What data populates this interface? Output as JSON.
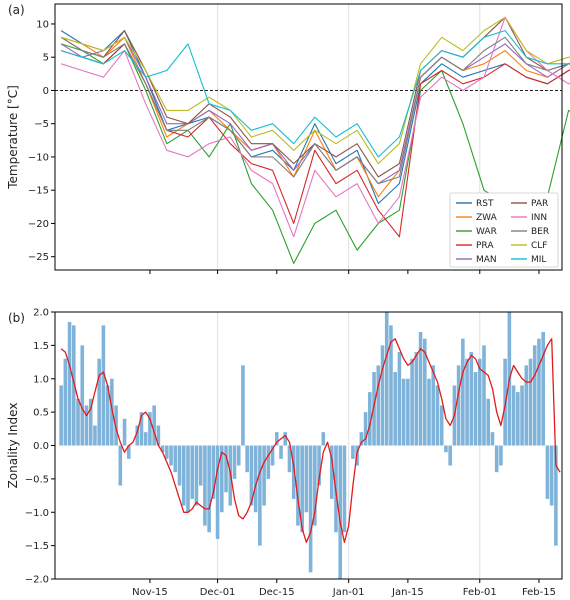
{
  "chart_data": [
    {
      "type": "line",
      "panel_label": "(a)",
      "ylabel": "Temperature [°C]",
      "ylim": [
        -27,
        13
      ],
      "yticks": [
        -25,
        -20,
        -15,
        -10,
        -5,
        0,
        5,
        10
      ],
      "ytick_labels": [
        "−25",
        "−20",
        "−15",
        "−10",
        "−5",
        "0",
        "5",
        "10"
      ],
      "x_dates": [
        "2015-10-25",
        "2015-10-30",
        "2015-11-04",
        "2015-11-09",
        "2015-11-14",
        "2015-11-19",
        "2015-11-24",
        "2015-11-29",
        "2015-12-04",
        "2015-12-09",
        "2015-12-14",
        "2015-12-19",
        "2015-12-24",
        "2015-12-29",
        "2016-01-03",
        "2016-01-08",
        "2016-01-13",
        "2016-01-18",
        "2016-01-23",
        "2016-01-28",
        "2016-02-02",
        "2016-02-07",
        "2016-02-12",
        "2016-02-17",
        "2016-02-22",
        "2016-02-27"
      ],
      "zero_line": "dashed",
      "legend": "bottom-right",
      "legend_columns": 2,
      "series": [
        {
          "name": "RST",
          "color": "#1f77b4",
          "values": [
            9,
            7,
            6,
            9,
            2,
            -6,
            -5,
            -4,
            -6,
            -10,
            -9,
            -12,
            -5,
            -11,
            -9,
            -17,
            -14,
            1,
            4,
            2,
            3,
            4,
            2,
            1,
            3,
            4
          ]
        },
        {
          "name": "ZWA",
          "color": "#ff7f0e",
          "values": [
            8,
            7,
            5,
            8,
            1,
            -7,
            -5,
            -3,
            -6,
            -9,
            -8,
            -13,
            -6,
            -12,
            -10,
            -16,
            -12,
            2,
            5,
            3,
            4,
            6,
            3,
            2,
            4,
            3
          ]
        },
        {
          "name": "WAR",
          "color": "#2ca02c",
          "values": [
            7,
            6,
            4,
            7,
            0,
            -8,
            -6,
            -10,
            -5,
            -14,
            -18,
            -26,
            -20,
            -18,
            -24,
            -20,
            -18,
            0,
            3,
            -5,
            -15,
            -17,
            -20,
            -16,
            -3,
            -5
          ]
        },
        {
          "name": "PRA",
          "color": "#d62728",
          "values": [
            6,
            5,
            4,
            7,
            1,
            -6,
            -7,
            -4,
            -8,
            -11,
            -12,
            -20,
            -9,
            -14,
            -12,
            -18,
            -22,
            1,
            3,
            1,
            2,
            4,
            2,
            1,
            3,
            4
          ]
        },
        {
          "name": "MAN",
          "color": "#9467bd",
          "values": [
            7,
            5,
            6,
            8,
            2,
            -5,
            -5,
            -3,
            -5,
            -9,
            -8,
            -12,
            -8,
            -12,
            -10,
            -14,
            -12,
            2,
            5,
            3,
            5,
            7,
            4,
            2,
            4,
            5
          ]
        },
        {
          "name": "PAR",
          "color": "#8c564b",
          "values": [
            8,
            6,
            5,
            9,
            3,
            -4,
            -5,
            -2,
            -4,
            -8,
            -8,
            -11,
            -8,
            -10,
            -8,
            -13,
            -11,
            3,
            6,
            5,
            8,
            11,
            5,
            3,
            4,
            5
          ]
        },
        {
          "name": "INN",
          "color": "#e377c2",
          "values": [
            4,
            3,
            2,
            6,
            -2,
            -9,
            -10,
            -8,
            -7,
            -12,
            -14,
            -22,
            -12,
            -16,
            -14,
            -20,
            -16,
            -1,
            2,
            0,
            2,
            11,
            6,
            3,
            1,
            2
          ]
        },
        {
          "name": "BER",
          "color": "#7f7f7f",
          "values": [
            8,
            6,
            5,
            7,
            1,
            -6,
            -6,
            -4,
            -6,
            -10,
            -10,
            -13,
            -8,
            -12,
            -10,
            -14,
            -13,
            2,
            5,
            3,
            6,
            8,
            4,
            3,
            4,
            4
          ]
        },
        {
          "name": "CLF",
          "color": "#bcbd22",
          "values": [
            8,
            7,
            6,
            8,
            3,
            -3,
            -3,
            -1,
            -3,
            -7,
            -6,
            -9,
            -6,
            -8,
            -6,
            -11,
            -8,
            4,
            8,
            6,
            9,
            11,
            6,
            4,
            5,
            5
          ]
        },
        {
          "name": "MIL",
          "color": "#17becf",
          "values": [
            6,
            5,
            4,
            6,
            2,
            3,
            7,
            -2,
            -3,
            -6,
            -5,
            -8,
            -4,
            -7,
            -5,
            -10,
            -7,
            3,
            6,
            5,
            8,
            9,
            5,
            4,
            4,
            5
          ]
        }
      ]
    },
    {
      "type": "bar",
      "panel_label": "(b)",
      "ylabel": "Zonality Index",
      "ylim": [
        -2.0,
        2.0
      ],
      "yticks": [
        -2.0,
        -1.5,
        -1.0,
        -0.5,
        0.0,
        0.5,
        1.0,
        1.5,
        2.0
      ],
      "ytick_labels": [
        "−2.0",
        "−1.5",
        "−1.0",
        "−0.5",
        "0.0",
        "0.5",
        "1.0",
        "1.5",
        "2.0"
      ],
      "xticks": [
        "2015-11-15",
        "2015-12-01",
        "2015-12-15",
        "2016-01-01",
        "2016-01-15",
        "2016-02-01",
        "2016-02-15"
      ],
      "xtick_labels": [
        "Nov-15",
        "Dec-01",
        "Dec-15",
        "Jan-01",
        "Jan-15",
        "Feb-01",
        "Feb-15"
      ],
      "x_start_date": "2015-10-25",
      "bar_color": "#7fb3d9",
      "smooth_color": "#e31a1c",
      "values": [
        0.9,
        1.3,
        1.85,
        1.8,
        0.7,
        1.5,
        0.6,
        0.7,
        0.3,
        1.3,
        1.8,
        0.9,
        1.0,
        0.6,
        -0.6,
        0.4,
        -0.2,
        0.0,
        0.3,
        0.5,
        0.2,
        0.5,
        0.6,
        0.3,
        -0.1,
        -0.2,
        -0.3,
        -0.4,
        -0.6,
        -0.9,
        -1.0,
        -0.8,
        -0.9,
        -0.6,
        -1.2,
        -1.3,
        -0.8,
        -1.4,
        -1.0,
        -0.7,
        -0.9,
        -0.5,
        -0.3,
        1.2,
        -0.4,
        -0.9,
        -1.0,
        -1.5,
        -0.9,
        -0.5,
        -0.3,
        0.2,
        -0.2,
        0.2,
        -0.4,
        -0.8,
        -1.2,
        -1.3,
        -1.0,
        -1.9,
        -1.2,
        -0.6,
        0.2,
        0.0,
        -0.8,
        -1.3,
        -2.0,
        -1.3,
        0.0,
        -0.2,
        -0.3,
        0.2,
        0.5,
        0.8,
        1.1,
        1.2,
        1.5,
        2.0,
        1.8,
        1.1,
        1.4,
        1.0,
        1.0,
        1.3,
        1.4,
        1.7,
        1.6,
        1.0,
        1.2,
        0.9,
        0.6,
        -0.1,
        -0.3,
        0.9,
        1.2,
        1.6,
        1.3,
        1.4,
        1.1,
        1.3,
        1.5,
        0.7,
        0.2,
        -0.4,
        -0.3,
        1.3,
        2.0,
        0.9,
        0.8,
        0.9,
        1.2,
        1.3,
        1.5,
        1.6,
        1.7,
        -0.8,
        -0.9,
        -1.5
      ],
      "smooth": [
        1.45,
        1.4,
        1.2,
        0.95,
        0.7,
        0.55,
        0.45,
        0.55,
        0.8,
        1.05,
        1.1,
        0.9,
        0.55,
        0.25,
        0.05,
        -0.1,
        0.0,
        0.05,
        0.2,
        0.45,
        0.5,
        0.4,
        0.2,
        0.0,
        -0.1,
        -0.25,
        -0.4,
        -0.6,
        -0.8,
        -1.0,
        -1.0,
        -0.95,
        -0.85,
        -0.9,
        -0.95,
        -0.95,
        -0.7,
        -0.35,
        -0.1,
        -0.15,
        -0.4,
        -0.8,
        -1.05,
        -1.1,
        -1.0,
        -0.85,
        -0.6,
        -0.4,
        -0.25,
        -0.15,
        -0.05,
        0.05,
        0.1,
        0.15,
        0.05,
        -0.3,
        -0.8,
        -1.25,
        -1.45,
        -1.3,
        -1.0,
        -0.5,
        -0.1,
        0.05,
        -0.2,
        -0.7,
        -1.15,
        -1.45,
        -1.2,
        -0.6,
        -0.1,
        0.05,
        0.1,
        0.3,
        0.6,
        0.9,
        1.15,
        1.35,
        1.55,
        1.6,
        1.45,
        1.3,
        1.2,
        1.25,
        1.35,
        1.45,
        1.4,
        1.25,
        1.1,
        0.95,
        0.7,
        0.4,
        0.3,
        0.45,
        0.8,
        1.1,
        1.25,
        1.35,
        1.3,
        1.15,
        1.1,
        1.05,
        0.85,
        0.5,
        0.3,
        0.6,
        1.0,
        1.2,
        1.1,
        1.0,
        0.95,
        0.95,
        1.05,
        1.2,
        1.35,
        1.5,
        1.6,
        -0.3,
        -0.4
      ]
    }
  ]
}
